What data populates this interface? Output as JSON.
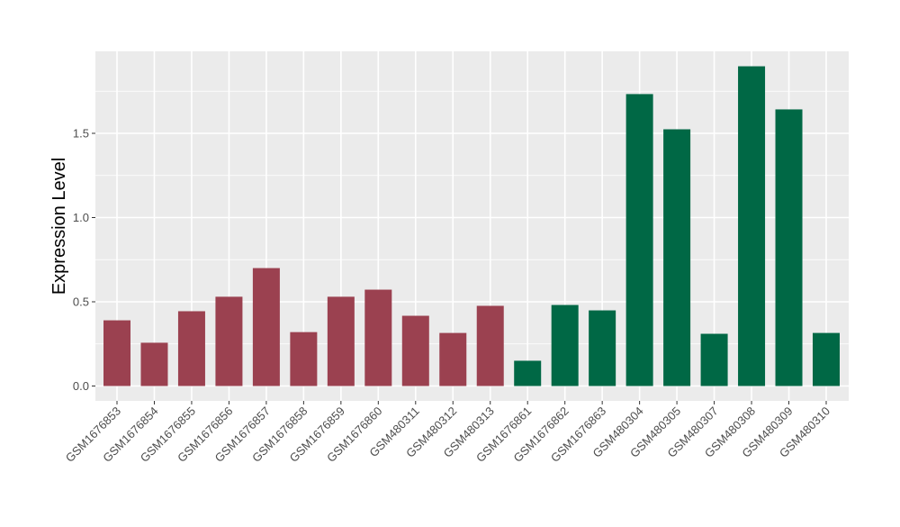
{
  "chart_data": {
    "type": "bar",
    "title": "",
    "xlabel": "",
    "ylabel": "Expression Level",
    "ylim": [
      -0.09,
      2.0
    ],
    "yticks": [
      0.0,
      0.5,
      1.0,
      1.5
    ],
    "ytick_labels": [
      "0.0",
      "0.5",
      "1.0",
      "1.5"
    ],
    "grid": true,
    "categories": [
      "GSM1676853",
      "GSM1676854",
      "GSM1676855",
      "GSM1676856",
      "GSM1676857",
      "GSM1676858",
      "GSM1676859",
      "GSM1676860",
      "GSM480311",
      "GSM480312",
      "GSM480313",
      "GSM1676861",
      "GSM1676862",
      "GSM1676863",
      "GSM480304",
      "GSM480305",
      "GSM480307",
      "GSM480308",
      "GSM480309",
      "GSM480310"
    ],
    "values": [
      0.39,
      0.257,
      0.444,
      0.53,
      0.7,
      0.32,
      0.53,
      0.572,
      0.417,
      0.315,
      0.476,
      0.15,
      0.481,
      0.449,
      1.733,
      1.524,
      0.31,
      1.898,
      1.642,
      0.315
    ],
    "groups": [
      0,
      0,
      0,
      0,
      0,
      0,
      0,
      0,
      0,
      0,
      0,
      1,
      1,
      1,
      1,
      1,
      1,
      1,
      1,
      1
    ],
    "group_colors": [
      "#9b4150",
      "#006845"
    ],
    "panel_color": "#ebebeb",
    "grid_color": "#ffffff"
  }
}
